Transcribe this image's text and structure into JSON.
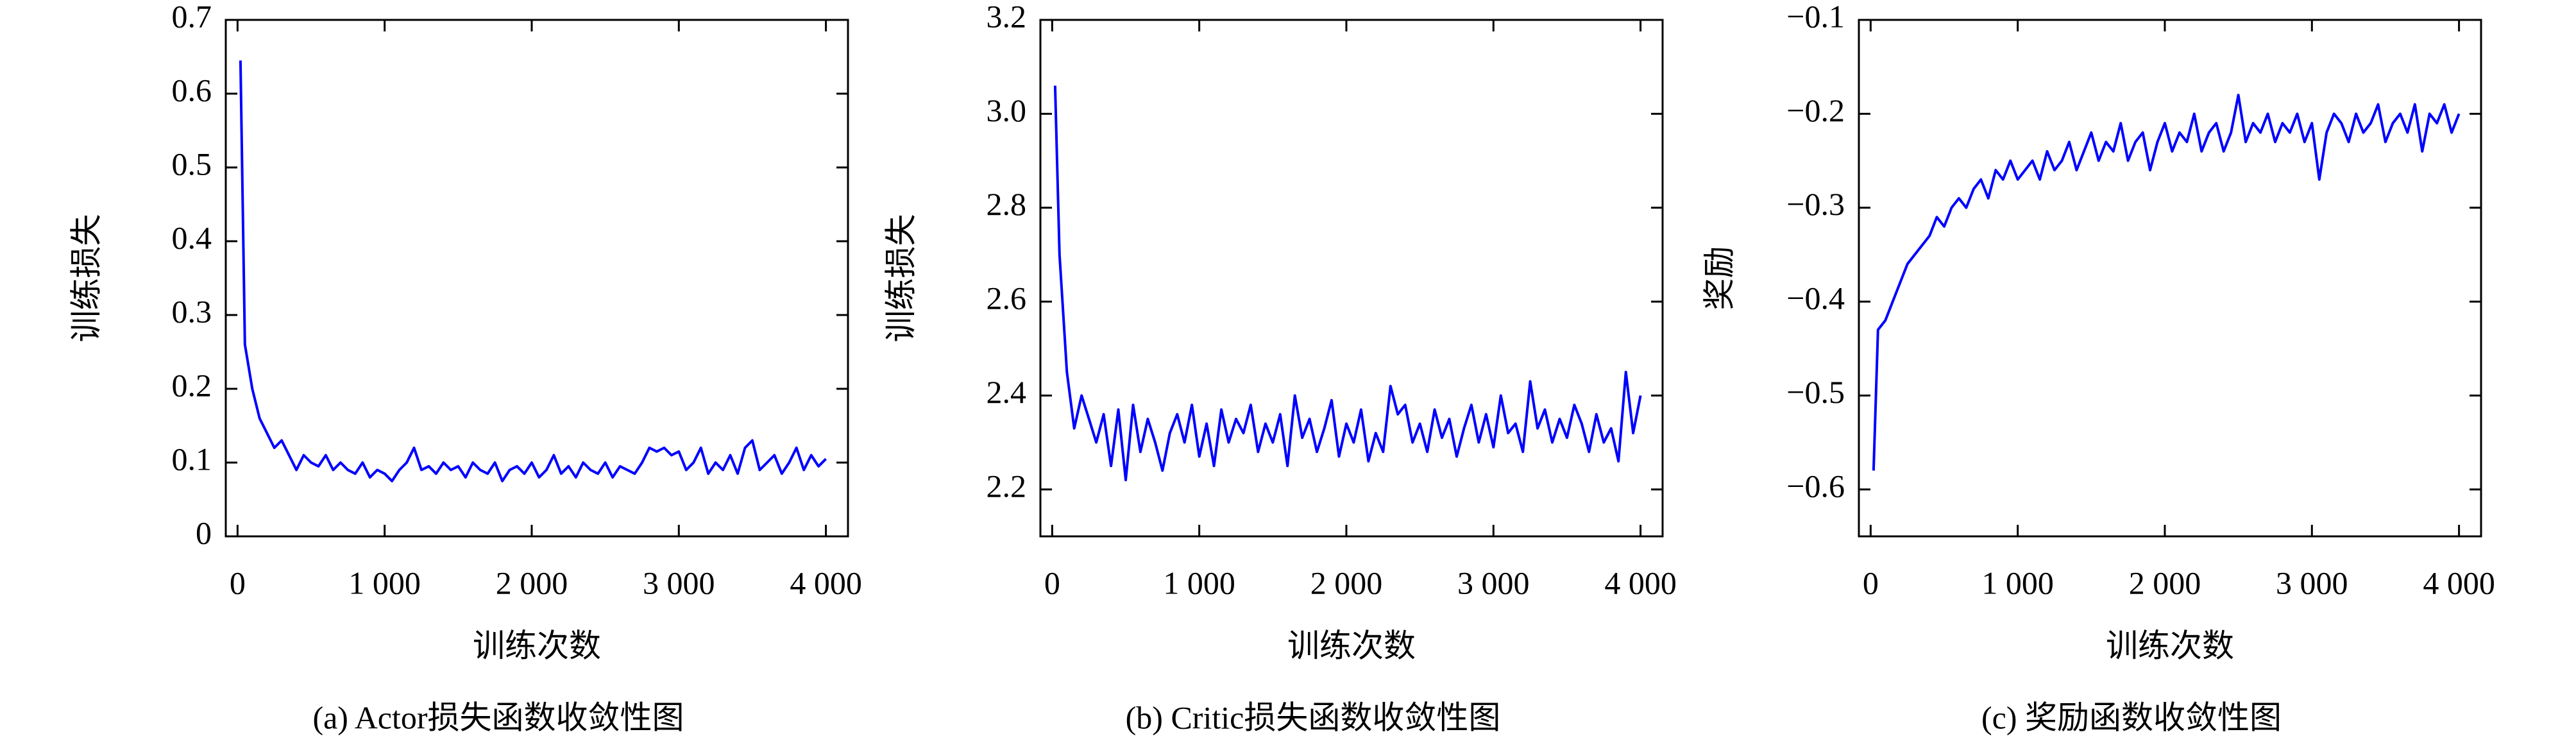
{
  "chart_data": [
    {
      "type": "line",
      "caption": "(a) Actor损失函数收敛性图",
      "xlabel": "训练次数",
      "ylabel": "训练损失",
      "color": "#0000ff",
      "xlim": [
        -80,
        4150
      ],
      "xticks": [
        0,
        {
          "value": 1000,
          "label": "1 000"
        },
        {
          "value": 2000,
          "label": "2 000"
        },
        {
          "value": 3000,
          "label": "3 000"
        },
        {
          "value": 4000,
          "label": "4 000"
        }
      ],
      "ylim": [
        0,
        0.7
      ],
      "yticks": [
        0,
        0.1,
        0.2,
        0.3,
        0.4,
        0.5,
        0.6,
        0.7
      ],
      "x": [
        20,
        50,
        100,
        150,
        200,
        250,
        300,
        350,
        400,
        450,
        500,
        550,
        600,
        650,
        700,
        750,
        800,
        850,
        900,
        950,
        1000,
        1050,
        1100,
        1150,
        1200,
        1250,
        1300,
        1350,
        1400,
        1450,
        1500,
        1550,
        1600,
        1650,
        1700,
        1750,
        1800,
        1850,
        1900,
        1950,
        2000,
        2050,
        2100,
        2150,
        2200,
        2250,
        2300,
        2350,
        2400,
        2450,
        2500,
        2550,
        2600,
        2650,
        2700,
        2750,
        2800,
        2850,
        2900,
        2950,
        3000,
        3050,
        3100,
        3150,
        3200,
        3250,
        3300,
        3350,
        3400,
        3450,
        3500,
        3550,
        3600,
        3650,
        3700,
        3750,
        3800,
        3850,
        3900,
        3950,
        4000
      ],
      "values": [
        0.645,
        0.26,
        0.2,
        0.16,
        0.14,
        0.12,
        0.13,
        0.11,
        0.09,
        0.11,
        0.1,
        0.095,
        0.11,
        0.09,
        0.1,
        0.09,
        0.085,
        0.1,
        0.08,
        0.09,
        0.085,
        0.075,
        0.09,
        0.1,
        0.12,
        0.09,
        0.095,
        0.085,
        0.1,
        0.09,
        0.095,
        0.08,
        0.1,
        0.09,
        0.085,
        0.1,
        0.075,
        0.09,
        0.095,
        0.085,
        0.1,
        0.08,
        0.09,
        0.11,
        0.085,
        0.095,
        0.08,
        0.1,
        0.09,
        0.085,
        0.1,
        0.08,
        0.095,
        0.09,
        0.085,
        0.1,
        0.12,
        0.115,
        0.12,
        0.11,
        0.115,
        0.09,
        0.1,
        0.12,
        0.085,
        0.1,
        0.09,
        0.11,
        0.085,
        0.12,
        0.13,
        0.09,
        0.1,
        0.11,
        0.085,
        0.1,
        0.12,
        0.09,
        0.11,
        0.095,
        0.105
      ]
    },
    {
      "type": "line",
      "caption": "(b) Critic损失函数收敛性图",
      "xlabel": "训练次数",
      "ylabel": "训练损失",
      "color": "#0000ff",
      "xlim": [
        -80,
        4150
      ],
      "xticks": [
        0,
        {
          "value": 1000,
          "label": "1 000"
        },
        {
          "value": 2000,
          "label": "2 000"
        },
        {
          "value": 3000,
          "label": "3 000"
        },
        {
          "value": 4000,
          "label": "4 000"
        }
      ],
      "ylim": [
        2.1,
        3.2
      ],
      "yticks": [
        2.2,
        2.4,
        2.6,
        2.8,
        {
          "value": 3.0,
          "label": "3.0"
        },
        3.2
      ],
      "x": [
        20,
        50,
        100,
        150,
        200,
        250,
        300,
        350,
        400,
        450,
        500,
        550,
        600,
        650,
        700,
        750,
        800,
        850,
        900,
        950,
        1000,
        1050,
        1100,
        1150,
        1200,
        1250,
        1300,
        1350,
        1400,
        1450,
        1500,
        1550,
        1600,
        1650,
        1700,
        1750,
        1800,
        1850,
        1900,
        1950,
        2000,
        2050,
        2100,
        2150,
        2200,
        2250,
        2300,
        2350,
        2400,
        2450,
        2500,
        2550,
        2600,
        2650,
        2700,
        2750,
        2800,
        2850,
        2900,
        2950,
        3000,
        3050,
        3100,
        3150,
        3200,
        3250,
        3300,
        3350,
        3400,
        3450,
        3500,
        3550,
        3600,
        3650,
        3700,
        3750,
        3800,
        3850,
        3900,
        3950,
        4000
      ],
      "values": [
        3.06,
        2.7,
        2.45,
        2.33,
        2.4,
        2.35,
        2.3,
        2.36,
        2.25,
        2.37,
        2.22,
        2.38,
        2.28,
        2.35,
        2.3,
        2.24,
        2.32,
        2.36,
        2.3,
        2.38,
        2.27,
        2.34,
        2.25,
        2.37,
        2.3,
        2.35,
        2.32,
        2.38,
        2.28,
        2.34,
        2.3,
        2.36,
        2.25,
        2.4,
        2.31,
        2.35,
        2.28,
        2.33,
        2.39,
        2.27,
        2.34,
        2.3,
        2.37,
        2.26,
        2.32,
        2.28,
        2.42,
        2.36,
        2.38,
        2.3,
        2.34,
        2.28,
        2.37,
        2.31,
        2.35,
        2.27,
        2.33,
        2.38,
        2.3,
        2.36,
        2.29,
        2.4,
        2.32,
        2.34,
        2.28,
        2.43,
        2.33,
        2.37,
        2.3,
        2.35,
        2.31,
        2.38,
        2.34,
        2.28,
        2.36,
        2.3,
        2.33,
        2.26,
        2.45,
        2.32,
        2.4
      ]
    },
    {
      "type": "line",
      "caption": "(c) 奖励函数收敛性图",
      "xlabel": "训练次数",
      "ylabel": "奖励",
      "color": "#0000ff",
      "xlim": [
        -80,
        4150
      ],
      "xticks": [
        0,
        {
          "value": 1000,
          "label": "1 000"
        },
        {
          "value": 2000,
          "label": "2 000"
        },
        {
          "value": 3000,
          "label": "3 000"
        },
        {
          "value": 4000,
          "label": "4 000"
        }
      ],
      "ylim": [
        -0.65,
        -0.1
      ],
      "yticks": [
        {
          "value": -0.6,
          "label": "−0.6"
        },
        {
          "value": -0.5,
          "label": "−0.5"
        },
        {
          "value": -0.4,
          "label": "−0.4"
        },
        {
          "value": -0.3,
          "label": "−0.3"
        },
        {
          "value": -0.2,
          "label": "−0.2"
        },
        {
          "value": -0.1,
          "label": "−0.1"
        }
      ],
      "x": [
        20,
        50,
        100,
        150,
        200,
        250,
        300,
        350,
        400,
        450,
        500,
        550,
        600,
        650,
        700,
        750,
        800,
        850,
        900,
        950,
        1000,
        1050,
        1100,
        1150,
        1200,
        1250,
        1300,
        1350,
        1400,
        1450,
        1500,
        1550,
        1600,
        1650,
        1700,
        1750,
        1800,
        1850,
        1900,
        1950,
        2000,
        2050,
        2100,
        2150,
        2200,
        2250,
        2300,
        2350,
        2400,
        2450,
        2500,
        2550,
        2600,
        2650,
        2700,
        2750,
        2800,
        2850,
        2900,
        2950,
        3000,
        3050,
        3100,
        3150,
        3200,
        3250,
        3300,
        3350,
        3400,
        3450,
        3500,
        3550,
        3600,
        3650,
        3700,
        3750,
        3800,
        3850,
        3900,
        3950,
        4000
      ],
      "values": [
        -0.58,
        -0.43,
        -0.42,
        -0.4,
        -0.38,
        -0.36,
        -0.35,
        -0.34,
        -0.33,
        -0.31,
        -0.32,
        -0.3,
        -0.29,
        -0.3,
        -0.28,
        -0.27,
        -0.29,
        -0.26,
        -0.27,
        -0.25,
        -0.27,
        -0.26,
        -0.25,
        -0.27,
        -0.24,
        -0.26,
        -0.25,
        -0.23,
        -0.26,
        -0.24,
        -0.22,
        -0.25,
        -0.23,
        -0.24,
        -0.21,
        -0.25,
        -0.23,
        -0.22,
        -0.26,
        -0.23,
        -0.21,
        -0.24,
        -0.22,
        -0.23,
        -0.2,
        -0.24,
        -0.22,
        -0.21,
        -0.24,
        -0.22,
        -0.18,
        -0.23,
        -0.21,
        -0.22,
        -0.2,
        -0.23,
        -0.21,
        -0.22,
        -0.2,
        -0.23,
        -0.21,
        -0.27,
        -0.22,
        -0.2,
        -0.21,
        -0.23,
        -0.2,
        -0.22,
        -0.21,
        -0.19,
        -0.23,
        -0.21,
        -0.2,
        -0.22,
        -0.19,
        -0.24,
        -0.2,
        -0.21,
        -0.19,
        -0.22,
        -0.2
      ]
    }
  ]
}
